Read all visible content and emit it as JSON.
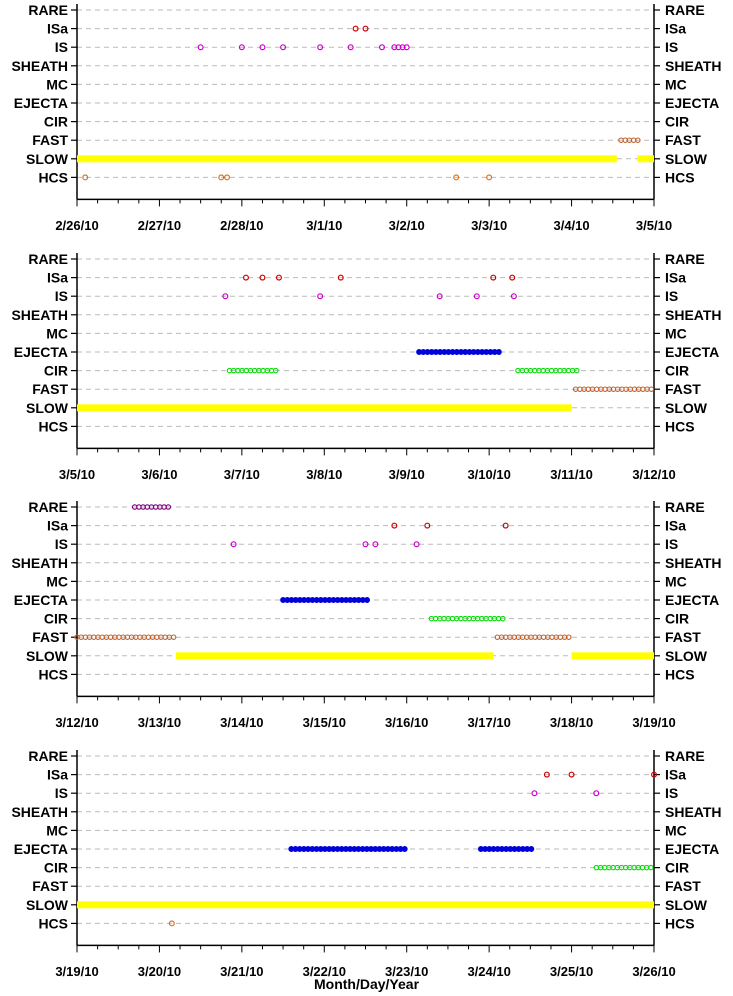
{
  "xlabel": "Month/Day/Year",
  "categories": [
    "RARE",
    "ISa",
    "IS",
    "SHEATH",
    "MC",
    "EJECTA",
    "CIR",
    "FAST",
    "SLOW",
    "HCS"
  ],
  "colors": {
    "RARE": "#800080",
    "ISa": "#cc0000",
    "IS": "#cc00cc",
    "SHEATH": "#000000",
    "MC": "#000000",
    "EJECTA": "#0000dd",
    "CIR": "#00dd00",
    "FAST": "#c0602a",
    "SLOW": "#ffff00",
    "HCS": "#e07020",
    "grid": "#bbbbbb"
  },
  "chart_data": [
    {
      "type": "scatter",
      "xlim": [
        0,
        7
      ],
      "ticks": [
        "2/26/10",
        "2/27/10",
        "2/28/10",
        "3/1/10",
        "3/2/10",
        "3/3/10",
        "3/4/10",
        "3/5/10"
      ],
      "points": {
        "ISa": [
          3.38,
          3.5
        ],
        "IS": [
          1.5,
          2.0,
          2.25,
          2.5,
          2.95,
          3.32,
          3.7,
          3.85,
          3.9,
          3.95,
          4.0
        ],
        "HCS": [
          0.1,
          1.75,
          1.82,
          4.6,
          5.0
        ]
      },
      "runs": {
        "SLOW": [
          [
            0,
            6.55
          ],
          [
            6.8,
            7.0
          ]
        ],
        "FAST": [
          [
            6.6,
            6.85
          ]
        ]
      }
    },
    {
      "type": "scatter",
      "xlim": [
        0,
        7
      ],
      "ticks": [
        "3/5/10",
        "3/6/10",
        "3/7/10",
        "3/8/10",
        "3/9/10",
        "3/10/10",
        "3/11/10",
        "3/12/10"
      ],
      "points": {
        "ISa": [
          2.05,
          2.25,
          2.45,
          3.2,
          5.05,
          5.28
        ],
        "IS": [
          1.8,
          2.95,
          4.4,
          4.85,
          5.3
        ]
      },
      "runs": {
        "SLOW": [
          [
            0,
            6.0
          ]
        ],
        "FAST": [
          [
            6.05,
            7.0
          ]
        ],
        "CIR": [
          [
            1.85,
            2.45
          ],
          [
            5.35,
            6.1
          ]
        ],
        "EJECTA": [
          [
            4.15,
            5.15
          ]
        ]
      }
    },
    {
      "type": "scatter",
      "xlim": [
        0,
        7
      ],
      "ticks": [
        "3/12/10",
        "3/13/10",
        "3/14/10",
        "3/15/10",
        "3/16/10",
        "3/17/10",
        "3/18/10",
        "3/19/10"
      ],
      "points": {
        "ISa": [
          3.85,
          4.25,
          5.2
        ],
        "IS": [
          1.9,
          3.5,
          3.62,
          4.12
        ]
      },
      "runs": {
        "RARE": [
          [
            0.7,
            1.12
          ]
        ],
        "FAST": [
          [
            0,
            1.2
          ],
          [
            5.1,
            6.0
          ]
        ],
        "SLOW": [
          [
            1.2,
            5.05
          ],
          [
            6.0,
            7.0
          ]
        ],
        "EJECTA": [
          [
            2.5,
            3.55
          ]
        ],
        "CIR": [
          [
            4.3,
            5.2
          ]
        ]
      }
    },
    {
      "type": "scatter",
      "xlim": [
        0,
        7
      ],
      "ticks": [
        "3/19/10",
        "3/20/10",
        "3/21/10",
        "3/22/10",
        "3/23/10",
        "3/24/10",
        "3/25/10",
        "3/26/10"
      ],
      "points": {
        "ISa": [
          5.7,
          6.0,
          7.0
        ],
        "IS": [
          5.55,
          6.3
        ],
        "HCS": [
          1.15
        ]
      },
      "runs": {
        "SLOW": [
          [
            0,
            7.0
          ]
        ],
        "EJECTA": [
          [
            2.6,
            4.0
          ],
          [
            4.9,
            5.55
          ]
        ],
        "CIR": [
          [
            6.3,
            7.0
          ]
        ]
      }
    }
  ]
}
